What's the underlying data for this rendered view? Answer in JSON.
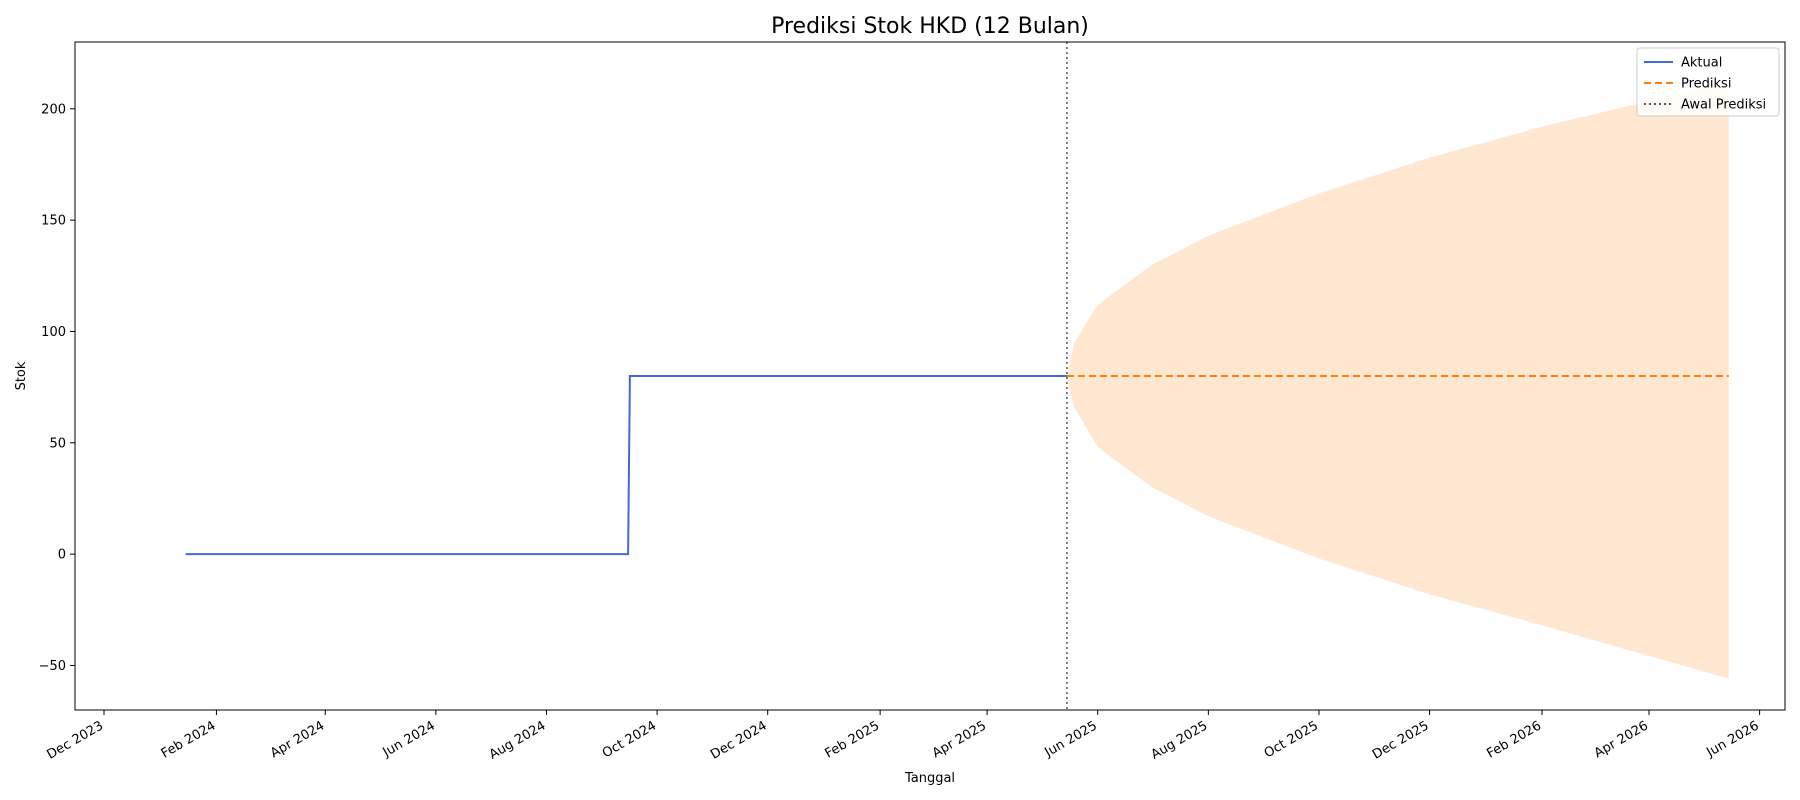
{
  "chart_data": {
    "type": "line",
    "title": "Prediksi Stok HKD (12 Bulan)",
    "xlabel": "Tanggal",
    "ylabel": "Stok",
    "x_axis": {
      "type": "date",
      "range": [
        "2023-11-15",
        "2026-06-15"
      ],
      "ticks": [
        {
          "date": "2023-12-01",
          "label": "Dec 2023"
        },
        {
          "date": "2024-02-01",
          "label": "Feb 2024"
        },
        {
          "date": "2024-04-01",
          "label": "Apr 2024"
        },
        {
          "date": "2024-06-01",
          "label": "Jun 2024"
        },
        {
          "date": "2024-08-01",
          "label": "Aug 2024"
        },
        {
          "date": "2024-10-01",
          "label": "Oct 2024"
        },
        {
          "date": "2024-12-01",
          "label": "Dec 2024"
        },
        {
          "date": "2025-02-01",
          "label": "Feb 2025"
        },
        {
          "date": "2025-04-01",
          "label": "Apr 2025"
        },
        {
          "date": "2025-06-01",
          "label": "Jun 2025"
        },
        {
          "date": "2025-08-01",
          "label": "Aug 2025"
        },
        {
          "date": "2025-10-01",
          "label": "Oct 2025"
        },
        {
          "date": "2025-12-01",
          "label": "Dec 2025"
        },
        {
          "date": "2026-02-01",
          "label": "Feb 2026"
        },
        {
          "date": "2026-04-01",
          "label": "Apr 2026"
        },
        {
          "date": "2026-06-01",
          "label": "Jun 2026"
        }
      ]
    },
    "y_axis": {
      "range": [
        -70,
        230
      ],
      "ticks": [
        {
          "value": -50,
          "label": "−50"
        },
        {
          "value": 0,
          "label": "0"
        },
        {
          "value": 50,
          "label": "50"
        },
        {
          "value": 100,
          "label": "100"
        },
        {
          "value": 150,
          "label": "150"
        },
        {
          "value": 200,
          "label": "200"
        }
      ]
    },
    "grid": false,
    "legend_position": "top-right",
    "series": [
      {
        "name": "Aktual",
        "color": "#4169e1",
        "style": "solid",
        "points": [
          {
            "date": "2024-01-15",
            "value": 0
          },
          {
            "date": "2024-09-15",
            "value": 0
          },
          {
            "date": "2024-09-16",
            "value": 80
          },
          {
            "date": "2025-05-15",
            "value": 80
          }
        ]
      },
      {
        "name": "Prediksi",
        "color": "#ff7f0e",
        "style": "dashed",
        "points": [
          {
            "date": "2025-05-15",
            "value": 80
          },
          {
            "date": "2026-05-15",
            "value": 80
          }
        ]
      }
    ],
    "confidence_band": {
      "color": "#ffe7d1",
      "points": [
        {
          "date": "2025-05-15",
          "upper": 80,
          "lower": 80
        },
        {
          "date": "2025-05-19",
          "upper": 95,
          "lower": 66
        },
        {
          "date": "2025-06-01",
          "upper": 112,
          "lower": 48
        },
        {
          "date": "2025-07-01",
          "upper": 130,
          "lower": 30
        },
        {
          "date": "2025-08-01",
          "upper": 143,
          "lower": 17
        },
        {
          "date": "2025-10-01",
          "upper": 162,
          "lower": -2
        },
        {
          "date": "2025-12-01",
          "upper": 178,
          "lower": -18
        },
        {
          "date": "2026-02-01",
          "upper": 192,
          "lower": -32
        },
        {
          "date": "2026-05-15",
          "upper": 212,
          "lower": -56
        }
      ]
    },
    "vertical_line": {
      "name": "Awal Prediksi",
      "date": "2025-05-15",
      "color": "#555555",
      "style": "dotted"
    }
  }
}
